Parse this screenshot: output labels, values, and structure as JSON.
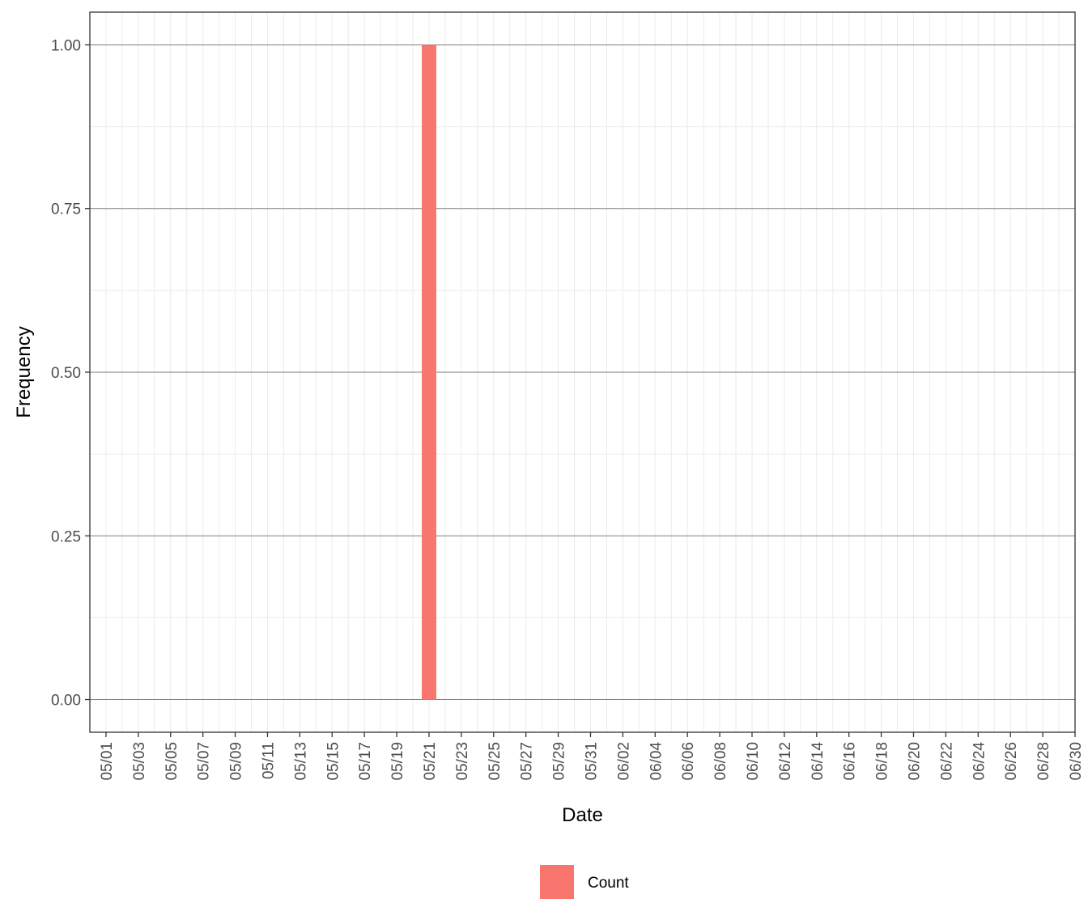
{
  "chart_data": {
    "type": "bar",
    "x": [
      "05/21"
    ],
    "series": [
      {
        "name": "Count",
        "color": "#F8766D",
        "values": [
          1
        ]
      }
    ],
    "x_tick_labels": [
      "05/01",
      "05/03",
      "05/05",
      "05/07",
      "05/09",
      "05/11",
      "05/13",
      "05/15",
      "05/17",
      "05/19",
      "05/21",
      "05/23",
      "05/25",
      "05/27",
      "05/29",
      "05/31",
      "06/02",
      "06/04",
      "06/06",
      "06/08",
      "06/10",
      "06/12",
      "06/14",
      "06/16",
      "06/18",
      "06/20",
      "06/22",
      "06/24",
      "06/26",
      "06/28",
      "06/30"
    ],
    "xlim": [
      "04/30",
      "06/30"
    ],
    "y_ticks": [
      0,
      0.25,
      0.5,
      0.75,
      1
    ],
    "y_tick_labels": [
      "0.00",
      "0.25",
      "0.50",
      "0.75",
      "1.00"
    ],
    "ylim": [
      -0.05,
      1.05
    ],
    "xlabel": "Date",
    "ylabel": "Frequency",
    "grid": true,
    "legend_position": "bottom"
  }
}
